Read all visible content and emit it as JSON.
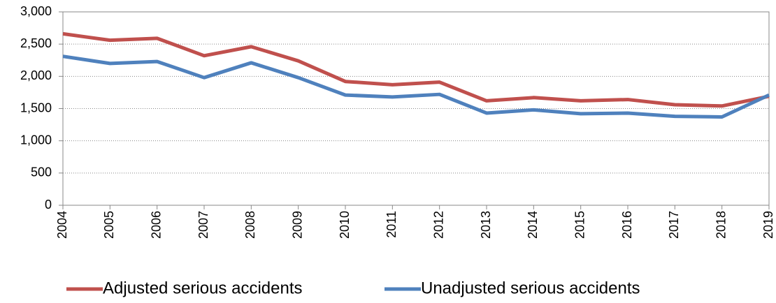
{
  "chart_data": {
    "type": "line",
    "categories": [
      "2004",
      "2005",
      "2006",
      "2007",
      "2008",
      "2009",
      "2010",
      "2011",
      "2012",
      "2013",
      "2014",
      "2015",
      "2016",
      "2017",
      "2018",
      "2019"
    ],
    "series": [
      {
        "name": "Adjusted serious accidents",
        "color": "#c0504d",
        "values": [
          2660,
          2560,
          2590,
          2320,
          2460,
          2240,
          1920,
          1870,
          1910,
          1620,
          1670,
          1620,
          1640,
          1560,
          1540,
          1690
        ]
      },
      {
        "name": "Unadjusted serious accidents",
        "color": "#4f81bd",
        "values": [
          2310,
          2200,
          2230,
          1980,
          2210,
          1980,
          1710,
          1680,
          1720,
          1430,
          1480,
          1420,
          1430,
          1380,
          1370,
          1710
        ]
      }
    ],
    "ylim": [
      0,
      3000
    ],
    "yticks": [
      0,
      500,
      {
        "value": 1000,
        "label": "1,000"
      },
      {
        "value": 1500,
        "label": "1,500"
      },
      {
        "value": 2000,
        "label": "2,000"
      },
      {
        "value": 2500,
        "label": "2,500"
      },
      {
        "value": 3000,
        "label": "3,000"
      }
    ],
    "grid": true,
    "legend": "bottom"
  }
}
